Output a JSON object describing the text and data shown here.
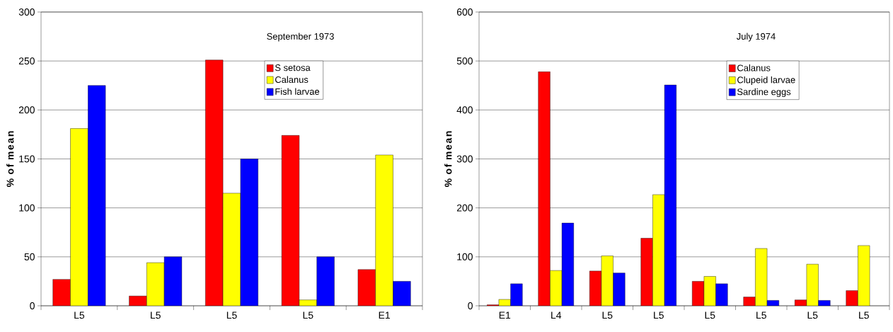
{
  "chart_data": [
    {
      "type": "bar",
      "title": "September 1973",
      "ylabel": "% of mean",
      "categories": [
        "L5",
        "L5",
        "L5",
        "L5",
        "E1"
      ],
      "series": [
        {
          "name": "S setosa",
          "color": "#ff0000",
          "values": [
            27,
            10,
            251,
            174,
            37
          ]
        },
        {
          "name": "Calanus",
          "color": "#ffff00",
          "values": [
            181,
            44,
            115,
            6,
            154
          ]
        },
        {
          "name": "Fish larvae",
          "color": "#0000ff",
          "values": [
            225,
            50,
            150,
            50,
            25
          ]
        }
      ],
      "ylim": [
        0,
        300
      ],
      "yticks": [
        0,
        50,
        100,
        150,
        200,
        250,
        300
      ],
      "grid": "y",
      "legend": "top right"
    },
    {
      "type": "bar",
      "title": "July 1974",
      "ylabel": "% of mean",
      "categories": [
        "E1",
        "L4",
        "L5",
        "L5",
        "L5",
        "L5",
        "L5",
        "L5"
      ],
      "series": [
        {
          "name": "Calanus",
          "color": "#ff0000",
          "values": [
            2,
            478,
            71,
            138,
            50,
            18,
            12,
            31
          ]
        },
        {
          "name": "Clupeid larvae",
          "color": "#ffff00",
          "values": [
            13,
            72,
            102,
            227,
            60,
            117,
            85,
            123
          ]
        },
        {
          "name": "Sardine eggs",
          "color": "#0000ff",
          "values": [
            45,
            169,
            67,
            451,
            45,
            11,
            11,
            null
          ]
        }
      ],
      "ylim": [
        0,
        600
      ],
      "yticks": [
        0,
        100,
        200,
        300,
        400,
        500,
        600
      ],
      "grid": "y",
      "legend": "top right"
    }
  ]
}
